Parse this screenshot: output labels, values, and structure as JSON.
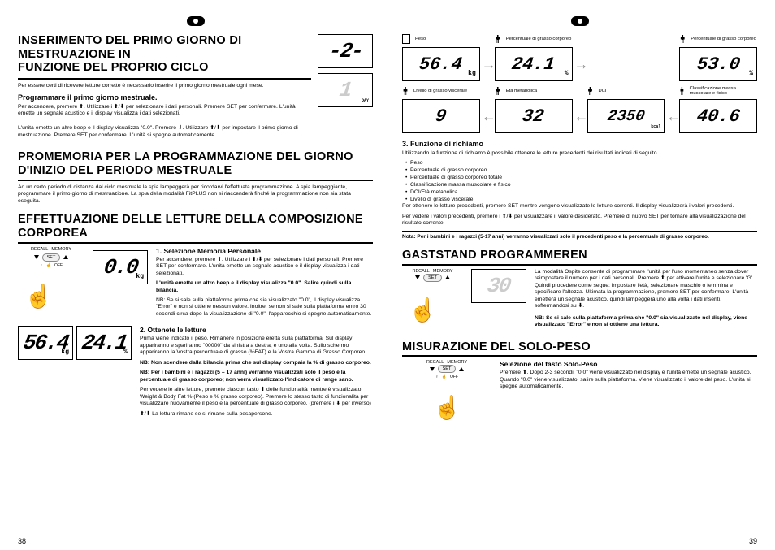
{
  "left": {
    "h1_line1": "INSERIMENTO DEL PRIMO GIORNO DI MESTRUAZIONE IN",
    "h1_line2": "FUNZIONE DEL PROPRIO CICLO",
    "p1": "Per essere certi di ricevere letture corrette è necessario inserire il primo giorno mestruale ogni mese.",
    "h3_1": "Programmare il primo giorno mestruale.",
    "p2": "Per accendere, premere ⬆. Utilizzare i ⬆/⬇ per selezionare i dati personali. Premere SET per confermare. L'unità emette un segnale acustico e il display visualizza i dati selezionati.",
    "p3": "L'unità emette un altro beep e il display visualizza \"0.0\". Premere ⬇. Utilizzare ⬆/⬇ per impostare il primo giorno di mestruazione. Premere SET per confermare. L'unità si spegne automaticamente.",
    "lcd_a": "-2-",
    "lcd_b": "1",
    "h2_2": "PROMEMORIA PER LA PROGRAMMAZIONE DEL GIORNO D'INIZIO DEL PERIODO MESTRUALE",
    "p4": "Ad un certo periodo di distanza dal ciclo mestruale la spia lampeggerà per ricordarvi l'effettuata programmazione. A spia lampeggiante, programmare il primo giorno di mestruazione. La spia della modalità FitPLUS non si riaccenderà finché la programmazione non sia stata eseguita.",
    "h2_3": "EFFETTUAZIONE DELLE LETTURE DELLA COMPOSIZIONE CORPOREA",
    "s1_title": "1. Selezione Memoria Personale",
    "s1_p1": "Per accendere, premere ⬆. Utilizzare i ⬆/⬇ per selezionare i dati personali. Premere SET per confermare. L'unità emette un segnale acustico e il display visualizza i dati selezionati.",
    "s1_p2": "L'unità emette un altro beep e il display visualizza \"0.0\". Salire quindi sulla bilancia.",
    "s1_nb": "NB: Se si sale sulla piattaforma prima che sia visualizzato \"0.0\", il display visualizza \"Error\" e non si ottiene nessun valore. Inoltre, se non si sale sulla piattaforma entro 30 secondi circa dopo la visualizzazione di \"0.0\", l'apparecchio si spegne automaticamente.",
    "lcd_00": "0.0",
    "s2_title": "2. Ottenete le letture",
    "s2_p1": "Prima viene indicato il peso. Rimanere in posizione eretta sulla piattaforma. Sul display appariranno e spariranno \"00000\" da sinistra a destra, e uno alla volta. Sullo schermo appariranno la Vostra percentuale di grasso (%FAT) e la Vostra Gamma di Grasso Corporeo.",
    "s2_nb1": "NB: Non scendere dalla bilancia prima che sul display compaia la % di grasso corporeo.",
    "s2_nb2": "NB: Per i bambini e i ragazzi (5 – 17 anni) verranno visualizzati solo il peso e la percentuale di grasso corporeo; non verrà visualizzato l'indicatore di range sano.",
    "s2_p2": "Per vedere le altre letture, premete ciascun tasto ⬆ delle funzionalità mentre è visualizzato Weight & Body Fat % (Peso e % grasso corporeo). Premere lo stesso tasto di funzionalità per visualizzare nuovamente il peso e la percentuale di grasso corporeo. (premere i ⬇ per inverso)",
    "s2_p3": "⬆/⬇ La lettura rimane se si rimane sulla pesapersone.",
    "lcd_564": "56.4",
    "lcd_241": "24.1",
    "btn_recall": "RECALL",
    "btn_memory": "MEMORY",
    "btn_set": "SET",
    "btn_off": "OFF",
    "pagenum": "38"
  },
  "right": {
    "labels": {
      "peso": "Peso",
      "pct_grasso": "Percentuale di grasso corporeo",
      "livello_viscerale": "Livello di grasso viscerale",
      "eta": "Età metabolica",
      "dci": "DCI",
      "class_musc": "Classificazione massa muscolare e fisico"
    },
    "displays": {
      "d1": "56.4",
      "d2": "24.1",
      "d3": "53.0",
      "d4": "9",
      "d5": "32",
      "d6": "2350",
      "d7": "40.6"
    },
    "units": {
      "kg": "kg",
      "pct": "%",
      "kcal": "kcal"
    },
    "h3_3": "3. Funzione di richiamo",
    "p_recall1": "Utilizzando la funzione di richiamo è possibile ottenere le letture precedenti dei risultati indicati di seguito.",
    "recall_list": [
      "Peso",
      "Percentuale di grasso corporeo",
      "Percentuale di grasso corporeo totale",
      "Classificazione massa muscolare e fisico",
      "DCI/Età metabolica",
      "Livello di grasso viscerale"
    ],
    "p_recall2": "Per ottenere le letture precedenti, premere SET mentre vengono visualizzate le letture correnti. Il display visualizzerà i valori precedenti.",
    "p_recall3": "Per vedere i valori precedenti, premere i ⬆/⬇ per visualizzare il valore desiderato. Premere di nuovo SET per tornare alla visualizzazione del risultato corrente.",
    "nota1": "Nota: Per i bambini e i ragazzi (5-17 anni) verranno visualizzati solo il precedenti peso e la percentuale di grasso corporeo.",
    "h2_gast": "GASTSTAND PROGRAMMEREN",
    "gast_p1": "La modalità Ospite consente di programmare l'unità per l'uso momentaneo senza dover reimpostare il numero per i dati personali. Premere ⬆ per attivare l'unità e selezionare 'G'. Quindi procedere come segue: impostare l'età, selezionare maschio o femmina e specificare l'altezza. Ultimata la programmazione, premere SET per confermare. L'unità emetterà un segnale acustico, quindi lampeggerà uno alla volta i dati inseriti, soffermandosi su ⬇.",
    "gast_nb": "NB: Se si sale sulla piattaforma prima che \"0.0\" sia visualizzato nel display, viene visualizzato \"Error\" e non si ottiene una lettura.",
    "lcd_30": "30",
    "h2_solo": "MISURAZIONE DEL SOLO-PESO",
    "solo_h4": "Selezione del tasto Solo-Peso",
    "solo_p": "Premere ⬆. Dopo 2-3 secondi, \"0.0\" viene visualizzato nel display e l'unità emette un segnale acustico. Quando \"0.0\" viene visualizzato, salire sulla piattaforma. Viene visualizzato il valore del peso. L'unità si spegne automaticamente.",
    "pagenum": "39"
  }
}
